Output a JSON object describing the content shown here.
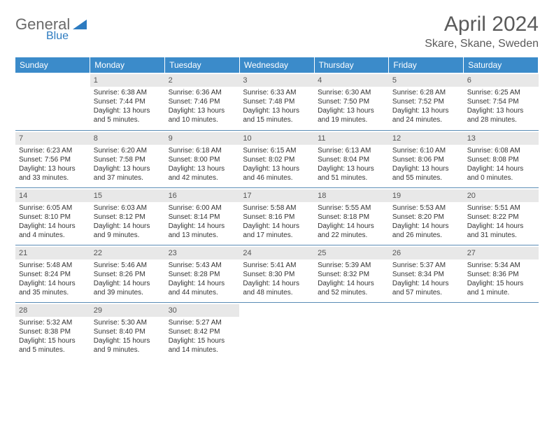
{
  "logo": {
    "text1": "General",
    "text2": "Blue"
  },
  "title": "April 2024",
  "location": "Skare, Skane, Sweden",
  "header_color": "#3b8bca",
  "daybar_color": "#e8e8e8",
  "border_color": "#5a8cb5",
  "day_headers": [
    "Sunday",
    "Monday",
    "Tuesday",
    "Wednesday",
    "Thursday",
    "Friday",
    "Saturday"
  ],
  "weeks": [
    [
      {
        "n": "",
        "sr": "",
        "ss": "",
        "dl": ""
      },
      {
        "n": "1",
        "sr": "Sunrise: 6:38 AM",
        "ss": "Sunset: 7:44 PM",
        "dl": "Daylight: 13 hours and 5 minutes."
      },
      {
        "n": "2",
        "sr": "Sunrise: 6:36 AM",
        "ss": "Sunset: 7:46 PM",
        "dl": "Daylight: 13 hours and 10 minutes."
      },
      {
        "n": "3",
        "sr": "Sunrise: 6:33 AM",
        "ss": "Sunset: 7:48 PM",
        "dl": "Daylight: 13 hours and 15 minutes."
      },
      {
        "n": "4",
        "sr": "Sunrise: 6:30 AM",
        "ss": "Sunset: 7:50 PM",
        "dl": "Daylight: 13 hours and 19 minutes."
      },
      {
        "n": "5",
        "sr": "Sunrise: 6:28 AM",
        "ss": "Sunset: 7:52 PM",
        "dl": "Daylight: 13 hours and 24 minutes."
      },
      {
        "n": "6",
        "sr": "Sunrise: 6:25 AM",
        "ss": "Sunset: 7:54 PM",
        "dl": "Daylight: 13 hours and 28 minutes."
      }
    ],
    [
      {
        "n": "7",
        "sr": "Sunrise: 6:23 AM",
        "ss": "Sunset: 7:56 PM",
        "dl": "Daylight: 13 hours and 33 minutes."
      },
      {
        "n": "8",
        "sr": "Sunrise: 6:20 AM",
        "ss": "Sunset: 7:58 PM",
        "dl": "Daylight: 13 hours and 37 minutes."
      },
      {
        "n": "9",
        "sr": "Sunrise: 6:18 AM",
        "ss": "Sunset: 8:00 PM",
        "dl": "Daylight: 13 hours and 42 minutes."
      },
      {
        "n": "10",
        "sr": "Sunrise: 6:15 AM",
        "ss": "Sunset: 8:02 PM",
        "dl": "Daylight: 13 hours and 46 minutes."
      },
      {
        "n": "11",
        "sr": "Sunrise: 6:13 AM",
        "ss": "Sunset: 8:04 PM",
        "dl": "Daylight: 13 hours and 51 minutes."
      },
      {
        "n": "12",
        "sr": "Sunrise: 6:10 AM",
        "ss": "Sunset: 8:06 PM",
        "dl": "Daylight: 13 hours and 55 minutes."
      },
      {
        "n": "13",
        "sr": "Sunrise: 6:08 AM",
        "ss": "Sunset: 8:08 PM",
        "dl": "Daylight: 14 hours and 0 minutes."
      }
    ],
    [
      {
        "n": "14",
        "sr": "Sunrise: 6:05 AM",
        "ss": "Sunset: 8:10 PM",
        "dl": "Daylight: 14 hours and 4 minutes."
      },
      {
        "n": "15",
        "sr": "Sunrise: 6:03 AM",
        "ss": "Sunset: 8:12 PM",
        "dl": "Daylight: 14 hours and 9 minutes."
      },
      {
        "n": "16",
        "sr": "Sunrise: 6:00 AM",
        "ss": "Sunset: 8:14 PM",
        "dl": "Daylight: 14 hours and 13 minutes."
      },
      {
        "n": "17",
        "sr": "Sunrise: 5:58 AM",
        "ss": "Sunset: 8:16 PM",
        "dl": "Daylight: 14 hours and 17 minutes."
      },
      {
        "n": "18",
        "sr": "Sunrise: 5:55 AM",
        "ss": "Sunset: 8:18 PM",
        "dl": "Daylight: 14 hours and 22 minutes."
      },
      {
        "n": "19",
        "sr": "Sunrise: 5:53 AM",
        "ss": "Sunset: 8:20 PM",
        "dl": "Daylight: 14 hours and 26 minutes."
      },
      {
        "n": "20",
        "sr": "Sunrise: 5:51 AM",
        "ss": "Sunset: 8:22 PM",
        "dl": "Daylight: 14 hours and 31 minutes."
      }
    ],
    [
      {
        "n": "21",
        "sr": "Sunrise: 5:48 AM",
        "ss": "Sunset: 8:24 PM",
        "dl": "Daylight: 14 hours and 35 minutes."
      },
      {
        "n": "22",
        "sr": "Sunrise: 5:46 AM",
        "ss": "Sunset: 8:26 PM",
        "dl": "Daylight: 14 hours and 39 minutes."
      },
      {
        "n": "23",
        "sr": "Sunrise: 5:43 AM",
        "ss": "Sunset: 8:28 PM",
        "dl": "Daylight: 14 hours and 44 minutes."
      },
      {
        "n": "24",
        "sr": "Sunrise: 5:41 AM",
        "ss": "Sunset: 8:30 PM",
        "dl": "Daylight: 14 hours and 48 minutes."
      },
      {
        "n": "25",
        "sr": "Sunrise: 5:39 AM",
        "ss": "Sunset: 8:32 PM",
        "dl": "Daylight: 14 hours and 52 minutes."
      },
      {
        "n": "26",
        "sr": "Sunrise: 5:37 AM",
        "ss": "Sunset: 8:34 PM",
        "dl": "Daylight: 14 hours and 57 minutes."
      },
      {
        "n": "27",
        "sr": "Sunrise: 5:34 AM",
        "ss": "Sunset: 8:36 PM",
        "dl": "Daylight: 15 hours and 1 minute."
      }
    ],
    [
      {
        "n": "28",
        "sr": "Sunrise: 5:32 AM",
        "ss": "Sunset: 8:38 PM",
        "dl": "Daylight: 15 hours and 5 minutes."
      },
      {
        "n": "29",
        "sr": "Sunrise: 5:30 AM",
        "ss": "Sunset: 8:40 PM",
        "dl": "Daylight: 15 hours and 9 minutes."
      },
      {
        "n": "30",
        "sr": "Sunrise: 5:27 AM",
        "ss": "Sunset: 8:42 PM",
        "dl": "Daylight: 15 hours and 14 minutes."
      },
      {
        "n": "",
        "sr": "",
        "ss": "",
        "dl": ""
      },
      {
        "n": "",
        "sr": "",
        "ss": "",
        "dl": ""
      },
      {
        "n": "",
        "sr": "",
        "ss": "",
        "dl": ""
      },
      {
        "n": "",
        "sr": "",
        "ss": "",
        "dl": ""
      }
    ]
  ]
}
